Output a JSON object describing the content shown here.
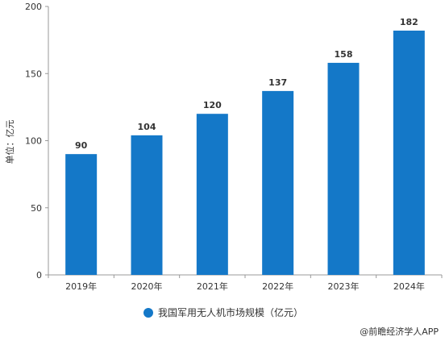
{
  "chart_data": {
    "type": "bar",
    "categories": [
      "2019年",
      "2020年",
      "2021年",
      "2022年",
      "2023年",
      "2024年"
    ],
    "series": [
      {
        "name": "我国军用无人机市场规模（亿元）",
        "values": [
          90,
          104,
          120,
          137,
          158,
          182
        ],
        "color": "#1478c8"
      }
    ],
    "ylabel": "单位：亿元",
    "ylim": [
      0,
      200
    ],
    "yticks": [
      0,
      50,
      100,
      150,
      200
    ],
    "grid": false,
    "legend": "bottom"
  },
  "source": "@前瞻经济学人APP"
}
